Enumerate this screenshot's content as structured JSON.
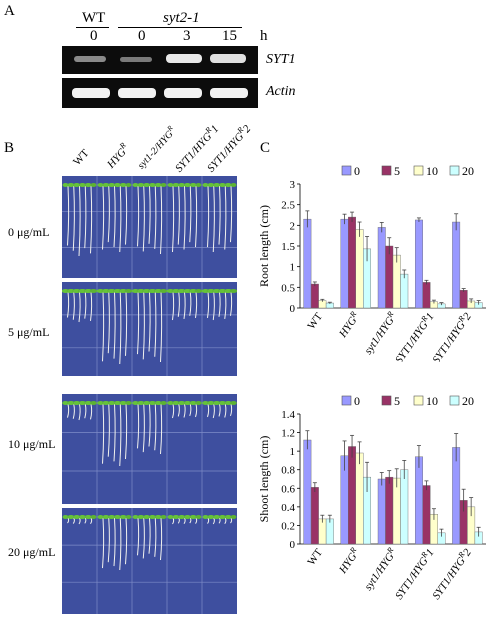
{
  "panel_a": {
    "letter": "A",
    "wt": "WT",
    "mutant": "syt2-1",
    "lane_times": [
      "0",
      "0",
      "3",
      "15"
    ],
    "unit": "h",
    "gel_labels": [
      "SYT1",
      "Actin"
    ]
  },
  "panel_b": {
    "letter": "B",
    "genotypes": [
      "WT",
      "HYG",
      "syt1-2/HYG",
      "SYT1/HYG",
      "SYT1/HYG"
    ],
    "genotype_sup": [
      "",
      "R",
      "R",
      "R",
      "R"
    ],
    "genotype_suffix": [
      "",
      "",
      "",
      "1",
      "2"
    ],
    "doses": [
      "0 μg/mL",
      "5 μg/mL",
      "10 μg/mL",
      "20 μg/mL"
    ]
  },
  "panel_c": {
    "letter": "C"
  },
  "chart_data": [
    {
      "type": "bar",
      "categories": [
        "WT",
        "HYGR",
        "syt1/HYGR",
        "SYT1/HYGR1",
        "SYT1/HYGR2"
      ],
      "series": [
        {
          "name": "0",
          "values": [
            2.15,
            2.15,
            1.95,
            2.13,
            2.08
          ],
          "errors": [
            0.2,
            0.12,
            0.12,
            0.05,
            0.2
          ],
          "color": "#9999ff"
        },
        {
          "name": "5",
          "values": [
            0.58,
            2.2,
            1.5,
            0.62,
            0.43
          ],
          "errors": [
            0.05,
            0.12,
            0.2,
            0.05,
            0.04
          ],
          "color": "#993366"
        },
        {
          "name": "10",
          "values": [
            0.18,
            1.9,
            1.28,
            0.15,
            0.17
          ],
          "errors": [
            0.03,
            0.18,
            0.18,
            0.04,
            0.05
          ],
          "color": "#ffffcc"
        },
        {
          "name": "20",
          "values": [
            0.12,
            1.43,
            0.82,
            0.1,
            0.13
          ],
          "errors": [
            0.02,
            0.3,
            0.1,
            0.03,
            0.05
          ],
          "color": "#ccffff"
        }
      ],
      "ylabel": "Root length (cm)",
      "ylim": [
        0,
        3
      ],
      "yticks": [
        "0",
        "0.5",
        "1",
        "1.5",
        "2",
        "2.5",
        "3"
      ],
      "legend": "top"
    },
    {
      "type": "bar",
      "categories": [
        "WT",
        "HYGR",
        "syt1/HYGR",
        "SYT1/HYGR1",
        "SYT1/HYGR2"
      ],
      "series": [
        {
          "name": "0",
          "values": [
            1.12,
            0.95,
            0.7,
            0.94,
            1.04
          ],
          "errors": [
            0.1,
            0.16,
            0.07,
            0.12,
            0.15
          ],
          "color": "#9999ff"
        },
        {
          "name": "5",
          "values": [
            0.61,
            1.05,
            0.72,
            0.63,
            0.47
          ],
          "errors": [
            0.05,
            0.12,
            0.07,
            0.05,
            0.12
          ],
          "color": "#993366"
        },
        {
          "name": "10",
          "values": [
            0.27,
            0.98,
            0.71,
            0.32,
            0.4
          ],
          "errors": [
            0.04,
            0.12,
            0.1,
            0.06,
            0.1
          ],
          "color": "#ffffcc"
        },
        {
          "name": "20",
          "values": [
            0.27,
            0.72,
            0.8,
            0.12,
            0.13
          ],
          "errors": [
            0.04,
            0.16,
            0.1,
            0.04,
            0.05
          ],
          "color": "#ccffff"
        }
      ],
      "ylabel": "Shoot length (cm)",
      "ylim": [
        0,
        1.4
      ],
      "yticks": [
        "0",
        "0.2",
        "0.4",
        "0.6",
        "0.8",
        "1",
        "1.2",
        "1.4"
      ],
      "legend": "top"
    }
  ]
}
